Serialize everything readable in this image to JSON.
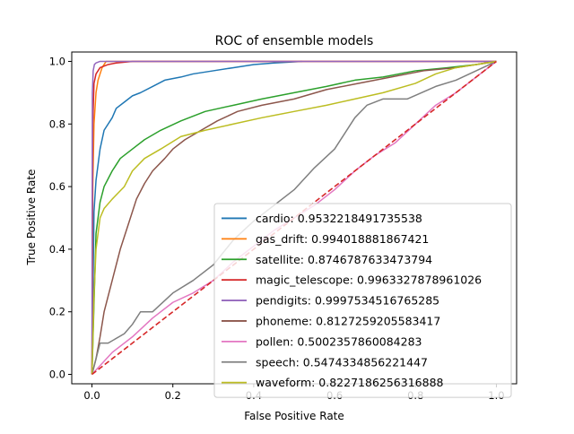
{
  "chart_data": {
    "type": "line",
    "title": "ROC of ensemble models",
    "xlabel": "False Positive Rate",
    "ylabel": "True Positive Rate",
    "xlim": [
      -0.05,
      1.05
    ],
    "ylim": [
      -0.03,
      1.03
    ],
    "xticks": [
      0.0,
      0.2,
      0.4,
      0.6,
      0.8,
      1.0
    ],
    "xtick_labels": [
      "0.0",
      "0.2",
      "0.4",
      "0.6",
      "0.8",
      "1.0"
    ],
    "yticks": [
      0.0,
      0.2,
      0.4,
      0.6,
      0.8,
      1.0
    ],
    "ytick_labels": [
      "0.0",
      "0.2",
      "0.4",
      "0.6",
      "0.8",
      "1.0"
    ],
    "grid": false,
    "legend_position": "lower-right",
    "diagonal": {
      "x": [
        0,
        1
      ],
      "y": [
        0,
        1
      ],
      "color": "#d62728",
      "style": "dashed"
    },
    "series": [
      {
        "name": "cardio: 0.9532218491735538",
        "color": "#1f77b4",
        "x": [
          0,
          0.005,
          0.01,
          0.02,
          0.03,
          0.05,
          0.06,
          0.08,
          0.1,
          0.12,
          0.15,
          0.18,
          0.22,
          0.25,
          0.3,
          0.35,
          0.4,
          0.45,
          0.52
        ],
        "y": [
          0,
          0.52,
          0.62,
          0.72,
          0.78,
          0.82,
          0.85,
          0.87,
          0.89,
          0.9,
          0.92,
          0.94,
          0.95,
          0.96,
          0.97,
          0.98,
          0.99,
          0.995,
          1.0
        ]
      },
      {
        "name": "gas_drift: 0.994018881867421",
        "color": "#ff7f0e",
        "x": [
          0,
          0.002,
          0.005,
          0.01,
          0.015,
          0.02,
          0.025,
          0.03,
          0.035,
          0.05,
          1.0
        ],
        "y": [
          0,
          0.6,
          0.8,
          0.9,
          0.94,
          0.96,
          0.98,
          0.99,
          1.0,
          1.0,
          1.0
        ]
      },
      {
        "name": "satellite: 0.8746787633473794",
        "color": "#2ca02c",
        "x": [
          0,
          0.01,
          0.02,
          0.03,
          0.05,
          0.07,
          0.1,
          0.13,
          0.17,
          0.22,
          0.28,
          0.35,
          0.42,
          0.5,
          0.58,
          0.65,
          0.72,
          0.8,
          0.88,
          0.95,
          1.0
        ],
        "y": [
          0,
          0.45,
          0.55,
          0.6,
          0.65,
          0.69,
          0.72,
          0.75,
          0.78,
          0.81,
          0.84,
          0.86,
          0.88,
          0.9,
          0.92,
          0.94,
          0.95,
          0.97,
          0.98,
          0.99,
          1.0
        ]
      },
      {
        "name": "magic_telescope: 0.9963327878961026",
        "color": "#d62728",
        "x": [
          0,
          0.002,
          0.005,
          0.01,
          0.02,
          0.04,
          0.06,
          0.1,
          0.2,
          0.4,
          0.6,
          0.8,
          1.0
        ],
        "y": [
          0,
          0.8,
          0.93,
          0.96,
          0.98,
          0.99,
          0.995,
          1.0,
          1.0,
          1.0,
          1.0,
          1.0,
          1.0
        ]
      },
      {
        "name": "pendigits: 0.9997534516765285",
        "color": "#9467bd",
        "x": [
          0,
          0.001,
          0.003,
          0.006,
          0.01,
          0.02,
          0.05,
          1.0
        ],
        "y": [
          0,
          0.9,
          0.97,
          0.99,
          0.995,
          1.0,
          1.0,
          1.0
        ]
      },
      {
        "name": "phoneme: 0.8127259205583417",
        "color": "#8c564b",
        "x": [
          0,
          0.01,
          0.02,
          0.03,
          0.05,
          0.07,
          0.09,
          0.11,
          0.13,
          0.15,
          0.18,
          0.2,
          0.23,
          0.27,
          0.31,
          0.36,
          0.42,
          0.5,
          0.58,
          0.66,
          0.74,
          0.82,
          0.9,
          0.95,
          1.0
        ],
        "y": [
          0,
          0.05,
          0.12,
          0.2,
          0.3,
          0.4,
          0.48,
          0.56,
          0.61,
          0.65,
          0.69,
          0.72,
          0.75,
          0.78,
          0.81,
          0.84,
          0.86,
          0.88,
          0.91,
          0.93,
          0.95,
          0.97,
          0.98,
          0.99,
          1.0
        ]
      },
      {
        "name": "pollen: 0.5002357860084283",
        "color": "#e377c2",
        "x": [
          0,
          0.05,
          0.1,
          0.15,
          0.2,
          0.25,
          0.3,
          0.35,
          0.4,
          0.45,
          0.5,
          0.55,
          0.6,
          0.65,
          0.7,
          0.75,
          0.8,
          0.85,
          0.9,
          0.95,
          1.0
        ],
        "y": [
          0,
          0.07,
          0.12,
          0.18,
          0.23,
          0.26,
          0.3,
          0.36,
          0.41,
          0.46,
          0.5,
          0.54,
          0.59,
          0.65,
          0.7,
          0.74,
          0.8,
          0.86,
          0.9,
          0.95,
          1.0
        ]
      },
      {
        "name": "speech: 0.5474334856221447",
        "color": "#7f7f7f",
        "x": [
          0,
          0.02,
          0.04,
          0.08,
          0.1,
          0.12,
          0.15,
          0.2,
          0.25,
          0.3,
          0.35,
          0.4,
          0.45,
          0.5,
          0.55,
          0.6,
          0.65,
          0.68,
          0.72,
          0.78,
          0.85,
          0.9,
          0.95,
          1.0
        ],
        "y": [
          0,
          0.1,
          0.1,
          0.13,
          0.16,
          0.2,
          0.2,
          0.26,
          0.3,
          0.35,
          0.43,
          0.49,
          0.54,
          0.59,
          0.66,
          0.72,
          0.82,
          0.86,
          0.88,
          0.88,
          0.92,
          0.94,
          0.97,
          1.0
        ]
      },
      {
        "name": "waveform: 0.8227186256316888",
        "color": "#bcbd22",
        "x": [
          0,
          0.005,
          0.01,
          0.02,
          0.03,
          0.05,
          0.08,
          0.1,
          0.13,
          0.17,
          0.22,
          0.28,
          0.35,
          0.42,
          0.5,
          0.58,
          0.65,
          0.72,
          0.8,
          0.85,
          0.9,
          0.95,
          1.0
        ],
        "y": [
          0,
          0.25,
          0.4,
          0.5,
          0.53,
          0.56,
          0.6,
          0.65,
          0.69,
          0.72,
          0.76,
          0.78,
          0.8,
          0.82,
          0.84,
          0.86,
          0.88,
          0.9,
          0.93,
          0.96,
          0.98,
          0.99,
          1.0
        ]
      }
    ]
  }
}
